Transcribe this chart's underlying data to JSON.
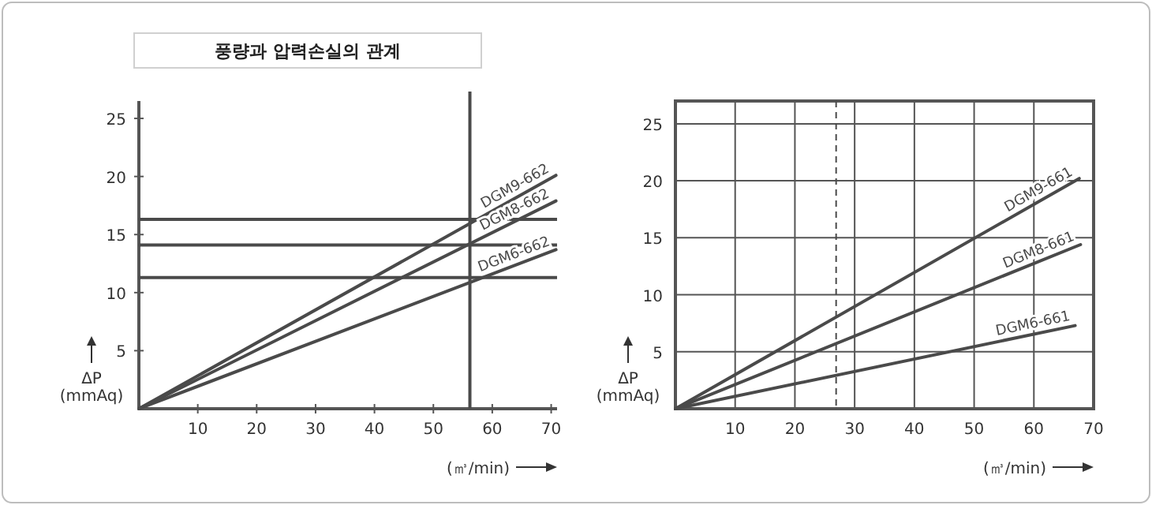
{
  "chart_data": [
    {
      "type": "line",
      "title": "풍량과 압력손실의 관계",
      "xlabel": "(㎥/min)",
      "ylabel": "ΔP\n(mmAq)",
      "xlim": [
        0,
        71
      ],
      "ylim": [
        0,
        26.5
      ],
      "xticks": [
        10,
        20,
        30,
        40,
        50,
        60,
        70
      ],
      "yticks": [
        5,
        10,
        15,
        20,
        25
      ],
      "x": [
        0,
        70.8
      ],
      "series": [
        {
          "name": "DGM9-662",
          "color": "#4a4a4a",
          "values": [
            0,
            20.1
          ]
        },
        {
          "name": "DGM8-662",
          "color": "#4a4a4a",
          "values": [
            0,
            17.9
          ]
        },
        {
          "name": "DGM6-662",
          "color": "#4a4a4a",
          "values": [
            0,
            13.7
          ]
        }
      ],
      "ref_lines": [
        {
          "axis": "y",
          "value": 16.3,
          "color": "#4a4a4a"
        },
        {
          "axis": "y",
          "value": 14.1,
          "color": "#4a4a4a"
        },
        {
          "axis": "y",
          "value": 11.3,
          "color": "#4a4a4a"
        },
        {
          "axis": "x",
          "value": 56.2,
          "color": "#4a4a4a"
        }
      ]
    },
    {
      "type": "line",
      "xlabel": "(㎥/min)",
      "ylabel": "ΔP\n(mmAq)",
      "xlim": [
        0,
        70
      ],
      "ylim": [
        0,
        27
      ],
      "xticks": [
        10,
        20,
        30,
        40,
        50,
        60,
        70
      ],
      "yticks": [
        5,
        10,
        15,
        20,
        25
      ],
      "grid": true,
      "series": [
        {
          "name": "DGM9-661",
          "color": "#4a4a4a",
          "x": [
            0,
            67.6
          ],
          "values": [
            0,
            20.2
          ]
        },
        {
          "name": "DGM8-661",
          "color": "#4a4a4a",
          "x": [
            0,
            67.8
          ],
          "values": [
            0,
            14.4
          ]
        },
        {
          "name": "DGM6-661",
          "color": "#4a4a4a",
          "x": [
            0,
            66.9
          ],
          "values": [
            0,
            7.3
          ]
        }
      ],
      "ref_lines": [
        {
          "axis": "x",
          "value": 26.9,
          "color": "#4a4a4a",
          "line_style": "dashed"
        }
      ]
    }
  ]
}
